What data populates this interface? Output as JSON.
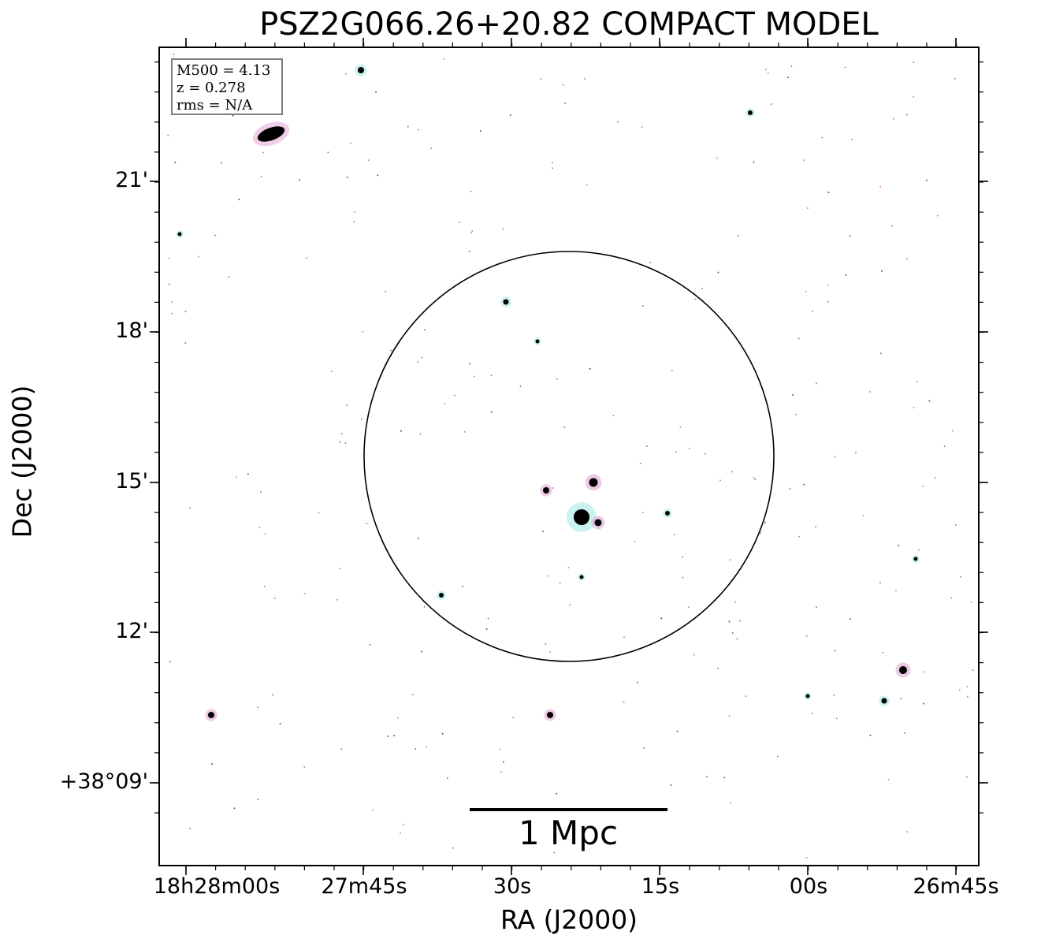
{
  "title": "PSZ2G066.26+20.82 COMPACT MODEL",
  "axes": {
    "xlabel": "RA (J2000)",
    "ylabel": "Dec (J2000)",
    "x_ticks": [
      "18h28m00s",
      "27m45s",
      "30s",
      "15s",
      "00s",
      "26m45s"
    ],
    "y_ticks": [
      "21'",
      "18'",
      "15'",
      "12'",
      "+38°09'"
    ]
  },
  "info_box": {
    "mass": "M500 = 4.13",
    "redshift": "z = 0.278",
    "rms": "rms = N/A"
  },
  "scale_bar": {
    "label": "1 Mpc"
  },
  "colors": {
    "frame": "#000000",
    "source_core": "#000000",
    "halo_cyan": "#9fe8e0",
    "halo_pink": "#e0a0d0",
    "info_border": "#7f7f7f"
  }
}
